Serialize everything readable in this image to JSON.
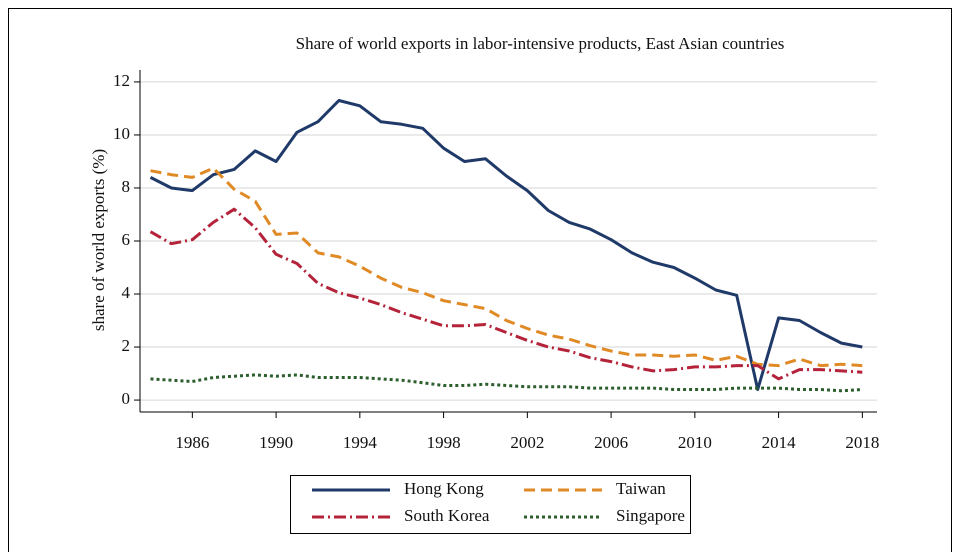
{
  "chart_data": {
    "type": "line",
    "title": "Share of world exports in labor-intensive products, East Asian countries",
    "y_label": "share  of  world  exports  (%)",
    "x": [
      1984,
      1985,
      1986,
      1987,
      1988,
      1989,
      1990,
      1991,
      1992,
      1993,
      1994,
      1995,
      1996,
      1997,
      1998,
      1999,
      2000,
      2001,
      2002,
      2003,
      2004,
      2005,
      2006,
      2007,
      2008,
      2009,
      2010,
      2011,
      2012,
      2013,
      2014,
      2015,
      2016,
      2017,
      2018
    ],
    "series": [
      {
        "name": "Hong Kong",
        "color": "#1f3a68",
        "dash": "solid",
        "values": [
          8.4,
          8.0,
          7.9,
          8.5,
          8.7,
          9.4,
          9.0,
          10.1,
          10.5,
          11.3,
          11.1,
          10.5,
          10.4,
          10.25,
          9.5,
          9.0,
          9.1,
          8.45,
          7.9,
          7.15,
          6.7,
          6.45,
          6.05,
          5.55,
          5.2,
          5.0,
          4.6,
          4.15,
          3.95,
          0.4,
          3.1,
          3.0,
          2.55,
          2.15,
          2.0
        ]
      },
      {
        "name": "Taiwan",
        "color": "#e08a26",
        "dash": "dashed",
        "values": [
          8.65,
          8.5,
          8.4,
          8.75,
          7.95,
          7.5,
          6.25,
          6.3,
          5.55,
          5.4,
          5.05,
          4.6,
          4.25,
          4.05,
          3.75,
          3.6,
          3.45,
          3.0,
          2.7,
          2.45,
          2.3,
          2.05,
          1.85,
          1.7,
          1.7,
          1.65,
          1.7,
          1.5,
          1.65,
          1.35,
          1.3,
          1.55,
          1.3,
          1.35,
          1.3
        ]
      },
      {
        "name": "South Korea",
        "color": "#b5233a",
        "dash": "dashdot",
        "values": [
          6.35,
          5.9,
          6.05,
          6.7,
          7.2,
          6.5,
          5.5,
          5.15,
          4.4,
          4.05,
          3.85,
          3.6,
          3.3,
          3.05,
          2.8,
          2.8,
          2.85,
          2.55,
          2.25,
          2.0,
          1.85,
          1.6,
          1.45,
          1.25,
          1.1,
          1.15,
          1.25,
          1.25,
          1.3,
          1.3,
          0.8,
          1.15,
          1.15,
          1.1,
          1.05
        ]
      },
      {
        "name": "Singapore",
        "color": "#2c5e2e",
        "dash": "dotted",
        "values": [
          0.8,
          0.75,
          0.7,
          0.85,
          0.9,
          0.95,
          0.9,
          0.95,
          0.85,
          0.85,
          0.85,
          0.8,
          0.75,
          0.65,
          0.55,
          0.55,
          0.6,
          0.55,
          0.5,
          0.5,
          0.5,
          0.45,
          0.45,
          0.45,
          0.45,
          0.4,
          0.4,
          0.4,
          0.45,
          0.45,
          0.45,
          0.4,
          0.4,
          0.35,
          0.4
        ]
      }
    ],
    "xlim": [
      1983.5,
      2018.7
    ],
    "xticks": [
      1986,
      1990,
      1994,
      1998,
      2002,
      2006,
      2010,
      2014,
      2018
    ],
    "ylim": [
      -0.45,
      12.45
    ],
    "yticks": [
      0,
      2,
      4,
      6,
      8,
      10,
      12
    ],
    "grid": true,
    "legend": "bottom"
  }
}
